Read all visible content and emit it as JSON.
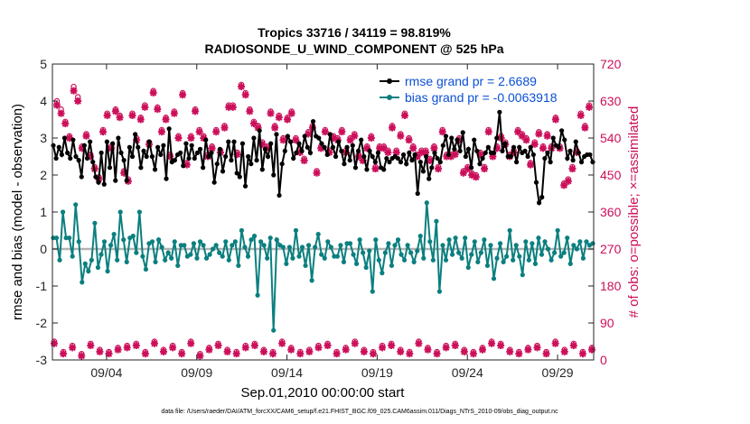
{
  "chart_data": {
    "type": "line",
    "title_line1": "Tropics 33716 / 34119 = 98.819%",
    "title_line2": "RADIOSONDE_U_WIND_COMPONENT @ 525 hPa",
    "xlabel": "Sep.01,2010 00:00:00 start",
    "ylabel_left": "rmse and bias (model - observation)",
    "ylabel_right": "# of obs: o=possible; ×=assimilated",
    "xlim": [
      1.0,
      31.0
    ],
    "ylim_left": [
      -3,
      5
    ],
    "ylim_right": [
      0,
      720
    ],
    "xticks": [
      4,
      9,
      14,
      19,
      24,
      29
    ],
    "xtick_labels": [
      "09/04",
      "09/09",
      "09/14",
      "09/19",
      "09/24",
      "09/29"
    ],
    "yticks_left": [
      -3,
      -2,
      -1,
      0,
      1,
      2,
      3,
      4,
      5
    ],
    "yticks_left_labels": [
      "-3",
      "-2",
      "-1",
      "0",
      "1",
      "2",
      "3",
      "4",
      "5"
    ],
    "yticks_right": [
      0,
      90,
      180,
      270,
      360,
      450,
      540,
      630,
      720
    ],
    "yticks_right_labels": [
      "0",
      "90",
      "180",
      "270",
      "360",
      "450",
      "540",
      "630",
      "720"
    ],
    "footer": "data file: /Users/raeder/DAI/ATM_forcXX/CAM6_setup/f.e21.FHIST_BGC.f09_025.CAM6assim.011/Diags_NTrS_2010-09/obs_diag_output.nc",
    "colors": {
      "rmse": "#000000",
      "bias": "#0b7f7f",
      "obs": "#cc0f5a",
      "zero_line": "#b3b3b3",
      "legend_text": "#0b4fd6"
    },
    "series": [
      {
        "name": "rmse grand pr = 2.6689",
        "values": [
          2.8,
          2.45,
          2.75,
          2.55,
          3.0,
          2.6,
          2.45,
          2.95,
          2.5,
          2.4,
          1.95,
          2.8,
          2.45,
          2.9,
          2.35,
          1.95,
          1.8,
          2.6,
          1.75,
          2.9,
          2.2,
          2.85,
          1.85,
          3.0,
          2.6,
          2.4,
          1.85,
          2.75,
          2.5,
          3.1,
          2.75,
          2.2,
          2.65,
          2.5,
          2.9,
          2.5,
          2.15,
          2.75,
          2.55,
          2.8,
          1.9,
          3.25,
          2.35,
          2.4,
          2.55,
          2.6,
          2.25,
          2.85,
          2.45,
          2.8,
          2.45,
          2.6,
          2.7,
          2.2,
          2.95,
          2.5,
          2.6,
          1.8,
          2.3,
          2.7,
          2.1,
          2.5,
          2.9,
          2.4,
          2.9,
          2.05,
          1.95,
          2.85,
          1.7,
          2.5,
          2.3,
          3.0,
          2.4,
          3.2,
          2.15,
          2.7,
          2.5,
          2.85,
          2.0,
          3.1,
          1.45,
          2.3,
          2.65,
          3.05,
          2.9,
          2.45,
          2.6,
          2.85,
          2.65,
          3.05,
          2.75,
          2.6,
          3.45,
          3.05,
          3.0,
          2.85,
          2.75,
          2.55,
          3.1,
          2.75,
          2.5,
          2.9,
          2.65,
          2.3,
          2.75,
          2.4,
          2.8,
          2.2,
          2.65,
          2.95,
          2.5,
          2.15,
          2.65,
          2.5,
          2.35,
          2.6,
          2.2,
          2.15,
          2.45,
          2.35,
          2.45,
          2.5,
          2.45,
          2.35,
          2.55,
          2.3,
          2.6,
          2.4,
          2.55,
          1.5,
          2.35,
          2.1,
          2.5,
          1.9,
          2.2,
          2.6,
          2.45,
          2.35,
          2.8,
          3.05,
          2.55,
          3.0,
          2.7,
          2.95,
          2.65,
          3.15,
          2.5,
          2.7,
          2.2,
          2.95,
          2.65,
          2.3,
          2.45,
          2.6,
          2.75,
          2.6,
          2.6,
          3.0,
          3.7,
          2.65,
          2.85,
          2.5,
          2.5,
          2.75,
          2.35,
          2.75,
          2.6,
          2.65,
          2.5,
          2.75,
          2.55,
          1.8,
          1.25,
          1.4,
          2.45,
          2.6,
          2.35,
          3.0,
          2.8,
          2.75,
          3.2,
          2.95,
          2.45,
          2.65,
          2.4,
          2.9,
          2.6,
          2.35,
          2.5,
          2.55,
          2.55,
          2.35
        ]
      },
      {
        "name": "bias grand pr = -0.0063918",
        "values": [
          0.3,
          0.3,
          -0.3,
          1.0,
          0.3,
          0.3,
          -0.2,
          1.2,
          0.2,
          -0.9,
          -0.4,
          -0.6,
          -0.3,
          0.7,
          -0.5,
          -0.15,
          0.2,
          -0.6,
          0.1,
          0.4,
          -0.3,
          1.0,
          0.25,
          -0.35,
          0.3,
          0.35,
          -0.1,
          1.0,
          -0.2,
          -0.55,
          0.15,
          0.2,
          -0.35,
          0.25,
          0.05,
          -0.3,
          -0.1,
          -0.25,
          0.2,
          -0.45,
          0.1,
          0.1,
          -0.2,
          -0.15,
          0.15,
          -0.25,
          0.2,
          0.1,
          -0.25,
          -0.15,
          0.0,
          0.1,
          -0.1,
          -0.2,
          0.2,
          -0.3,
          0.1,
          0.2,
          -0.45,
          0.5,
          0.05,
          -0.2,
          0.25,
          0.35,
          -1.25,
          0.2,
          0.1,
          -0.25,
          0.3,
          -2.2,
          0.25,
          0.1,
          0.05,
          -0.4,
          0.05,
          -0.25,
          0.5,
          -0.2,
          0.05,
          -0.45,
          0.1,
          -0.85,
          0.05,
          0.4,
          -0.15,
          -0.25,
          0.2,
          0.05,
          -0.2,
          -0.2,
          0.1,
          -0.35,
          0.15,
          0.15,
          -0.15,
          -0.4,
          0.25,
          -0.1,
          -0.5,
          -0.05,
          -1.15,
          0.25,
          -0.3,
          -0.65,
          -0.1,
          0.15,
          -0.45,
          0.1,
          0.25,
          -0.15,
          -0.3,
          0.1,
          -0.1,
          -0.35,
          -0.05,
          0.35,
          -0.25,
          1.25,
          0.2,
          -0.3,
          0.75,
          -1.15,
          0.1,
          -0.3,
          0.25,
          -0.15,
          0.3,
          -0.1,
          -0.25,
          0.3,
          -0.5,
          -0.15,
          0.2,
          -0.35,
          -0.1,
          0.25,
          -0.45,
          0.1,
          -0.8,
          -0.25,
          0.15,
          -0.35,
          -0.2,
          0.5,
          -0.3,
          0.1,
          -0.2,
          -0.7,
          0.2,
          -0.3,
          0.15,
          -0.4,
          0.3,
          -0.15,
          0.2,
          0.0,
          -0.3,
          -0.1,
          0.5,
          -0.2,
          -0.1,
          0.3,
          -0.4,
          0.1,
          0.0,
          0.2,
          -0.25,
          0.2,
          0.1,
          0.15
        ]
      }
    ],
    "obs_possible": [
      630,
      610,
      580,
      545,
      665,
      640,
      520,
      550,
      500,
      470,
      445,
      560,
      600,
      520,
      610,
      595,
      460,
      440,
      600,
      540,
      590,
      620,
      530,
      655,
      615,
      560,
      590,
      500,
      605,
      545,
      650,
      480,
      545,
      610,
      560,
      545,
      500,
      520,
      560,
      510,
      570,
      620,
      620,
      505,
      670,
      650,
      610,
      580,
      570,
      530,
      520,
      605,
      570,
      595,
      540,
      590,
      605,
      540,
      510,
      490,
      555,
      570,
      460,
      520,
      560,
      510,
      545,
      540,
      560,
      510,
      540,
      550,
      500,
      490,
      520,
      545,
      470,
      520,
      520,
      510,
      570,
      510,
      550,
      600,
      540,
      520,
      500,
      510,
      510,
      490,
      520,
      470,
      560,
      500,
      500,
      505,
      540,
      460,
      470,
      455,
      450,
      505,
      470,
      560,
      500,
      520,
      545,
      530,
      500,
      510,
      560,
      550,
      540,
      480,
      530,
      555,
      520,
      550,
      520,
      590,
      520,
      430,
      440,
      470,
      510,
      600,
      570,
      620
    ],
    "obs_assimilated": [
      620,
      600,
      575,
      540,
      655,
      630,
      515,
      545,
      495,
      465,
      440,
      555,
      595,
      515,
      605,
      590,
      455,
      435,
      595,
      535,
      585,
      615,
      525,
      650,
      610,
      555,
      585,
      495,
      600,
      540,
      645,
      475,
      540,
      605,
      555,
      540,
      495,
      515,
      555,
      505,
      565,
      615,
      615,
      500,
      665,
      645,
      605,
      575,
      565,
      525,
      515,
      600,
      565,
      590,
      535,
      585,
      600,
      535,
      505,
      485,
      550,
      565,
      455,
      515,
      555,
      505,
      540,
      535,
      555,
      505,
      535,
      545,
      495,
      485,
      515,
      540,
      465,
      515,
      515,
      505,
      565,
      505,
      545,
      595,
      535,
      515,
      495,
      505,
      505,
      485,
      515,
      465,
      555,
      495,
      495,
      500,
      535,
      455,
      465,
      450,
      445,
      500,
      465,
      555,
      495,
      515,
      540,
      525,
      495,
      505,
      555,
      545,
      535,
      475,
      525,
      550,
      515,
      545,
      515,
      585,
      515,
      425,
      435,
      465,
      505,
      595,
      565,
      615
    ],
    "obs_low_possible": [
      45,
      20,
      35,
      15,
      40,
      25,
      20,
      30,
      35,
      40,
      20,
      45,
      25,
      35,
      20,
      45,
      15,
      30,
      40,
      25,
      20,
      35,
      40,
      25,
      20,
      45,
      30,
      20,
      25,
      35,
      40,
      20,
      30,
      45,
      25,
      20,
      35,
      40,
      25,
      20,
      45,
      30,
      20,
      35,
      40,
      25,
      20,
      30,
      45,
      40,
      25,
      20,
      30,
      35,
      20,
      45,
      25,
      40,
      20,
      30
    ],
    "obs_low_assimilated": [
      40,
      15,
      30,
      10,
      35,
      20,
      15,
      25,
      30,
      35,
      15,
      40,
      20,
      30,
      15,
      40,
      10,
      25,
      35,
      20,
      15,
      30,
      35,
      20,
      15,
      40,
      25,
      15,
      20,
      30,
      35,
      15,
      25,
      40,
      20,
      15,
      30,
      35,
      20,
      15,
      40,
      25,
      15,
      30,
      35,
      20,
      15,
      25,
      40,
      35,
      20,
      15,
      25,
      30,
      15,
      40,
      20,
      35,
      15,
      25
    ]
  }
}
